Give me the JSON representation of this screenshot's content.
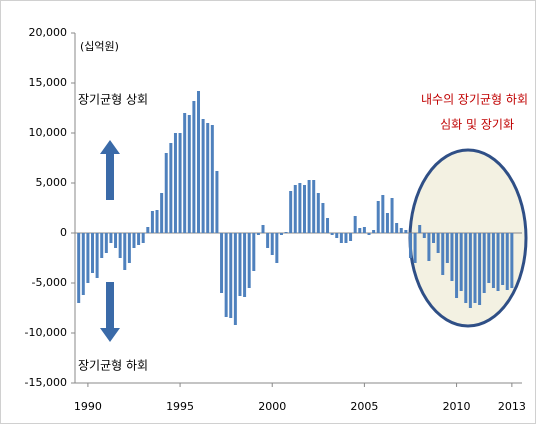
{
  "chart_data": {
    "type": "bar",
    "unit_note": "(십억원)",
    "annotations": [
      "장기균형 상회",
      "장기균형 하회",
      "내수의 장기균형 하회",
      "심화 및 장기화"
    ],
    "x": [
      1989.5,
      1989.75,
      1990,
      1990.25,
      1990.5,
      1990.75,
      1991,
      1991.25,
      1991.5,
      1991.75,
      1992,
      1992.25,
      1992.5,
      1992.75,
      1993,
      1993.25,
      1993.5,
      1993.75,
      1994,
      1994.25,
      1994.5,
      1994.75,
      1995,
      1995.25,
      1995.5,
      1995.75,
      1996,
      1996.25,
      1996.5,
      1996.75,
      1997,
      1997.25,
      1997.5,
      1997.75,
      1998,
      1998.25,
      1998.5,
      1998.75,
      1999,
      1999.25,
      1999.5,
      1999.75,
      2000,
      2000.25,
      2000.5,
      2000.75,
      2001,
      2001.25,
      2001.5,
      2001.75,
      2002,
      2002.25,
      2002.5,
      2002.75,
      2003,
      2003.25,
      2003.5,
      2003.75,
      2004,
      2004.25,
      2004.5,
      2004.75,
      2005,
      2005.25,
      2005.5,
      2005.75,
      2006,
      2006.25,
      2006.5,
      2006.75,
      2007,
      2007.25,
      2007.5,
      2007.75,
      2008,
      2008.25,
      2008.5,
      2008.75,
      2009,
      2009.25,
      2009.5,
      2009.75,
      2010,
      2010.25,
      2010.5,
      2010.75,
      2011,
      2011.25,
      2011.5,
      2011.75,
      2012,
      2012.25,
      2012.5,
      2012.75,
      2013
    ],
    "values": [
      -7000,
      -6200,
      -5000,
      -4000,
      -4500,
      -2500,
      -2000,
      -1000,
      -1500,
      -2500,
      -3700,
      -3000,
      -1500,
      -1200,
      -1000,
      600,
      2200,
      2300,
      4000,
      8000,
      9000,
      10000,
      10000,
      12000,
      11800,
      13200,
      14200,
      11400,
      11000,
      10800,
      6200,
      -6000,
      -8400,
      -8500,
      -9200,
      -6300,
      -6400,
      -5500,
      -3800,
      -200,
      800,
      -1500,
      -2200,
      -3000,
      -200,
      100,
      4200,
      4800,
      5000,
      4800,
      5300,
      5300,
      4000,
      3000,
      1500,
      -200,
      -500,
      -1000,
      -1000,
      -800,
      1700,
      500,
      600,
      -200,
      300,
      3200,
      3800,
      2000,
      3500,
      1000,
      500,
      300,
      -2500,
      -3000,
      800,
      -500,
      -2800,
      -1000,
      -2000,
      -4200,
      -3000,
      -4800,
      -6500,
      -5800,
      -7000,
      -7500,
      -7000,
      -7200,
      -6000,
      -5000,
      -5500,
      -5800,
      -5200,
      -5700,
      -5500
    ],
    "color": "#4f81bd",
    "xlim": [
      1989.3,
      2013.55
    ],
    "xticks": [
      1990,
      1995,
      2000,
      2005,
      2010,
      2013
    ],
    "ylim": [
      -15000,
      20000
    ],
    "yticks": [
      {
        "value": -15000,
        "label": "-15,000"
      },
      {
        "value": -10000,
        "label": "-10,000"
      },
      {
        "value": -5000,
        "label": "-5,000"
      },
      0,
      {
        "value": 5000,
        "label": "5,000"
      },
      {
        "value": 10000,
        "label": "10,000"
      },
      {
        "value": 15000,
        "label": "15,000"
      },
      {
        "value": 20000,
        "label": "20,000"
      }
    ],
    "grid": false
  }
}
